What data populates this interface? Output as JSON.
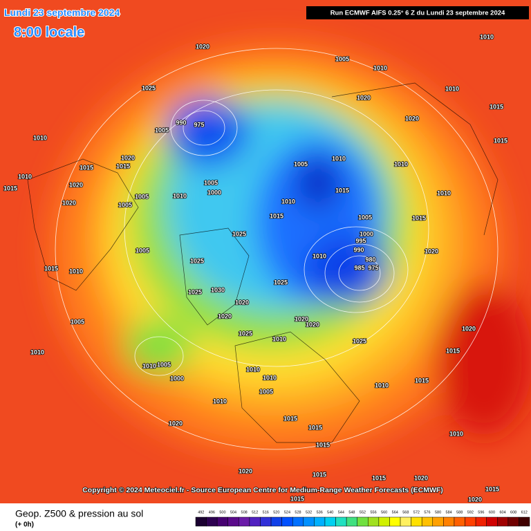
{
  "header": {
    "date": "Lundi 23 septembre 2024",
    "time": "8:00 locale",
    "run": "Run ECMWF AIFS 0.25° 6 Z du Lundi 23 septembre 2024"
  },
  "copyright": "Copyright © 2024 Meteociel.fr - Source European Centre for Medium-Range Weather Forecasts (ECMWF)",
  "footer": {
    "title": "Geop. Z500 & pression au sol",
    "lead": "(+ 0h)"
  },
  "legend": {
    "values": [
      492,
      496,
      500,
      504,
      508,
      512,
      516,
      520,
      524,
      528,
      532,
      536,
      540,
      544,
      548,
      552,
      556,
      560,
      564,
      568,
      572,
      576,
      580,
      584,
      588,
      592,
      596,
      600,
      604,
      608,
      612
    ],
    "colors": [
      "#1a0030",
      "#2d0050",
      "#450070",
      "#5a0a8a",
      "#6a1aa8",
      "#5020c0",
      "#3030d8",
      "#1040e8",
      "#0050ff",
      "#0070ff",
      "#0090ff",
      "#00b0ff",
      "#00d0f0",
      "#20e0c0",
      "#40e080",
      "#70e040",
      "#a0e020",
      "#d0f000",
      "#ffff00",
      "#fff060",
      "#ffe000",
      "#ffc000",
      "#ffa000",
      "#ff8000",
      "#ff6000",
      "#ff4000",
      "#f02000",
      "#d00000",
      "#a00000",
      "#700000",
      "#400000"
    ]
  },
  "isobar_labels": [
    1020,
    1005,
    1010,
    1010,
    1025,
    1010,
    1020,
    1015,
    1005,
    1020,
    1015,
    1010,
    1020,
    1015,
    1005,
    1010,
    1010,
    1010,
    1015,
    1020,
    1015,
    1005,
    1000,
    1015,
    1005,
    1010,
    1010,
    1010,
    1005,
    1020,
    1015,
    1005,
    1015,
    1025,
    1000,
    995,
    990,
    1020,
    1005,
    1010,
    980,
    985,
    975,
    1015,
    1010,
    1025,
    1025,
    1030,
    1025,
    1020,
    1020,
    1020,
    1020,
    1025,
    1010,
    1025,
    1020,
    1015,
    1005,
    1010,
    1010,
    1005,
    1000,
    1010,
    1010,
    1005,
    1010,
    1015,
    1010,
    1015,
    1015,
    1020,
    1010,
    1015,
    1020,
    1015,
    1015,
    1020,
    1020,
    1015,
    1015,
    990,
    975
  ]
}
